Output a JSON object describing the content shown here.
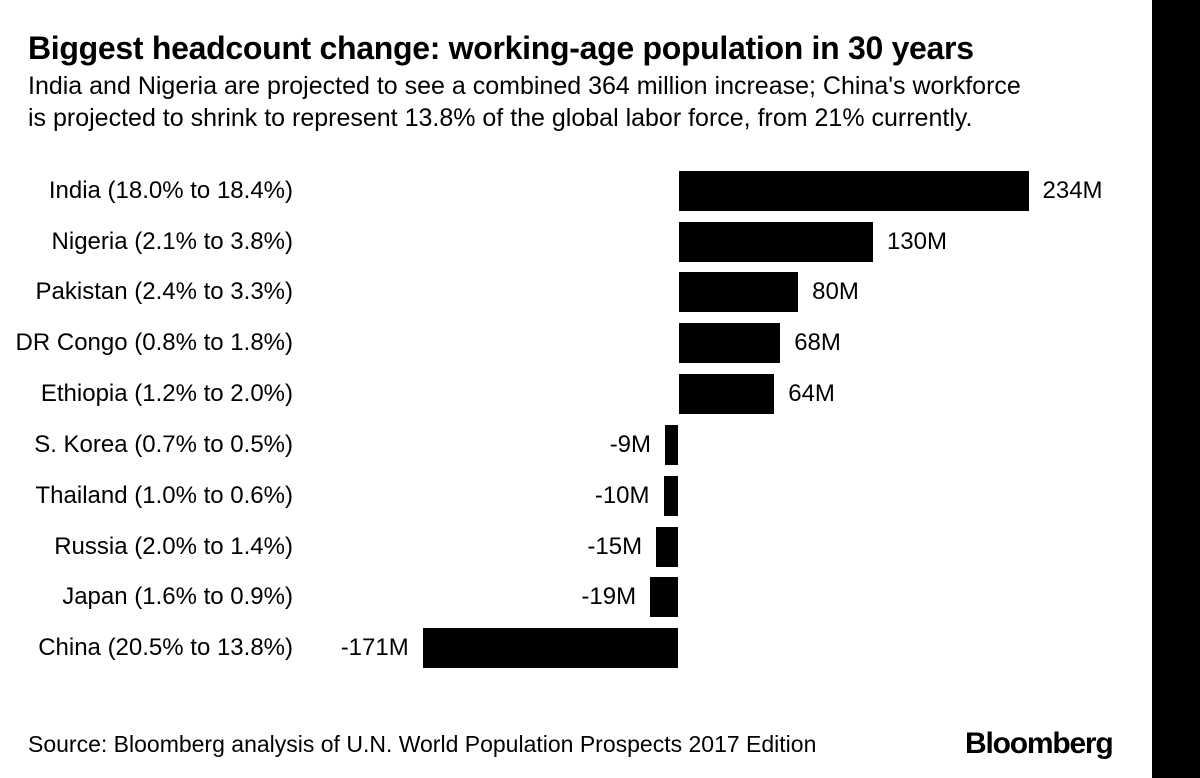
{
  "header": {
    "title": "Biggest headcount change: working-age population in 30 years",
    "subtitle_line1": "India and Nigeria are projected to see a combined 364 million increase; China's workforce",
    "subtitle_line2": "is projected to shrink to represent 13.8% of the global labor force, from 21% currently."
  },
  "chart_data": {
    "type": "bar",
    "orientation": "horizontal",
    "title": "Biggest headcount change: working-age population in 30 years",
    "categories": [
      "India (18.0% to 18.4%)",
      "Nigeria (2.1% to 3.8%)",
      "Pakistan (2.4% to 3.3%)",
      "DR Congo (0.8% to 1.8%)",
      "Ethiopia (1.2% to 2.0%)",
      "S. Korea (0.7% to 0.5%)",
      "Thailand (1.0% to 0.6%)",
      "Russia (2.0% to 1.4%)",
      "Japan (1.6% to 0.9%)",
      "China (20.5% to 13.8%)"
    ],
    "values": [
      234,
      130,
      80,
      68,
      64,
      -9,
      -10,
      -15,
      -19,
      -171
    ],
    "value_labels": [
      "234M",
      "130M",
      "80M",
      "68M",
      "64M",
      "-9M",
      "-10M",
      "-15M",
      "-19M",
      "-171M"
    ],
    "unit": "M",
    "xlim": [
      -171,
      234
    ],
    "grid": false,
    "axes_hidden": true,
    "value_label_position": "outside-end",
    "bar_color": "#000000",
    "text_color": "#000000",
    "background_color": "#ffffff"
  },
  "footer": {
    "source": "Source: Bloomberg analysis of U.N. World Population Prospects 2017 Edition",
    "brand": "Bloomberg"
  },
  "decor": {
    "right_strip_color": "#000000"
  }
}
